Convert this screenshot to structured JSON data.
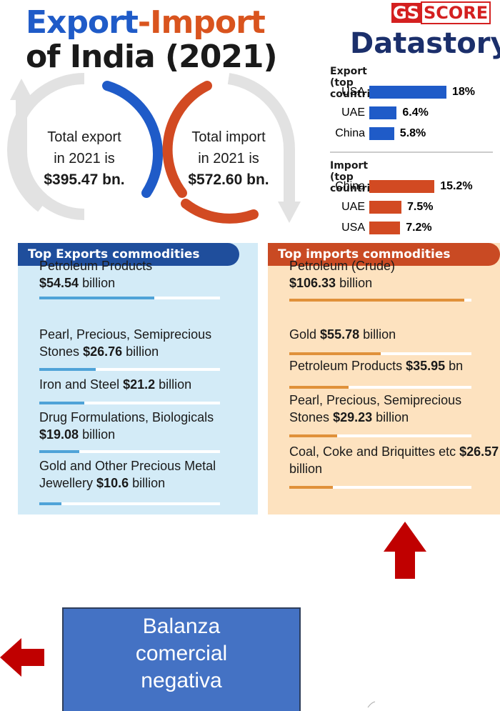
{
  "title": {
    "export": "Export",
    "import": "-Import",
    "line2": "of India (2021)"
  },
  "brand": {
    "gs": "GS",
    "score": "SCORE",
    "name": "Datastory"
  },
  "totals": {
    "export": {
      "line1": "Total export",
      "line2": "in 2021 is",
      "amount": "$395.47 bn."
    },
    "import": {
      "line1": "Total import",
      "line2": "in 2021 is",
      "amount": "$572.60 bn."
    }
  },
  "countries": {
    "export": {
      "heading": "Export (top countries):",
      "color": "#1f5bc8",
      "rows": [
        {
          "name": "USA",
          "value": 18,
          "label": "18%"
        },
        {
          "name": "UAE",
          "value": 6.4,
          "label": "6.4%"
        },
        {
          "name": "China",
          "value": 5.8,
          "label": "5.8%"
        }
      ]
    },
    "import": {
      "heading": "Import (top countries):",
      "color": "#d24a22",
      "rows": [
        {
          "name": "China",
          "value": 15.2,
          "label": "15.2%"
        },
        {
          "name": "UAE",
          "value": 7.5,
          "label": "7.5%"
        },
        {
          "name": "USA",
          "value": 7.2,
          "label": "7.2%"
        }
      ]
    }
  },
  "commodities": {
    "exports": {
      "heading": "Top Exports commodities",
      "color": "#4fa3d8",
      "items": [
        {
          "name": "Petroleum Products",
          "amount": {
            "value": 54.54,
            "label": "$54.54"
          },
          "unit": "billion"
        },
        {
          "name": "Pearl, Precious, Semiprecious Stones",
          "amount": {
            "value": 26.76,
            "label": "$26.76"
          },
          "unit": "billion"
        },
        {
          "name": "Iron and Steel",
          "amount": {
            "value": 21.2,
            "label": "$21.2"
          },
          "unit": "billion"
        },
        {
          "name": "Drug Formulations, Biologicals",
          "amount": {
            "value": 19.08,
            "label": "$19.08"
          },
          "unit": "billion"
        },
        {
          "name": "Gold and Other Precious Metal Jewellery",
          "amount": {
            "value": 10.6,
            "label": "$10.6"
          },
          "unit": "billion"
        }
      ]
    },
    "imports": {
      "heading": "Top imports commodities",
      "color": "#e0913a",
      "items": [
        {
          "name": "Petroleum (Crude)",
          "amount": {
            "value": 106.33,
            "label": "$106.33"
          },
          "unit": "billion"
        },
        {
          "name": "Gold",
          "amount": {
            "value": 55.78,
            "label": "$55.78"
          },
          "unit": "billion"
        },
        {
          "name": "Petroleum Products",
          "amount": {
            "value": 35.95,
            "label": "$35.95"
          },
          "unit": "bn"
        },
        {
          "name": "Pearl, Precious, Semiprecious Stones",
          "amount": {
            "value": 29.23,
            "label": "$29.23"
          },
          "unit": "billion"
        },
        {
          "name": "Coal, Coke and Briquittes etc",
          "amount": {
            "value": 26.57,
            "label": "$26.57"
          },
          "unit": "billion"
        }
      ]
    }
  },
  "note": "Balanza comercial negativa"
}
